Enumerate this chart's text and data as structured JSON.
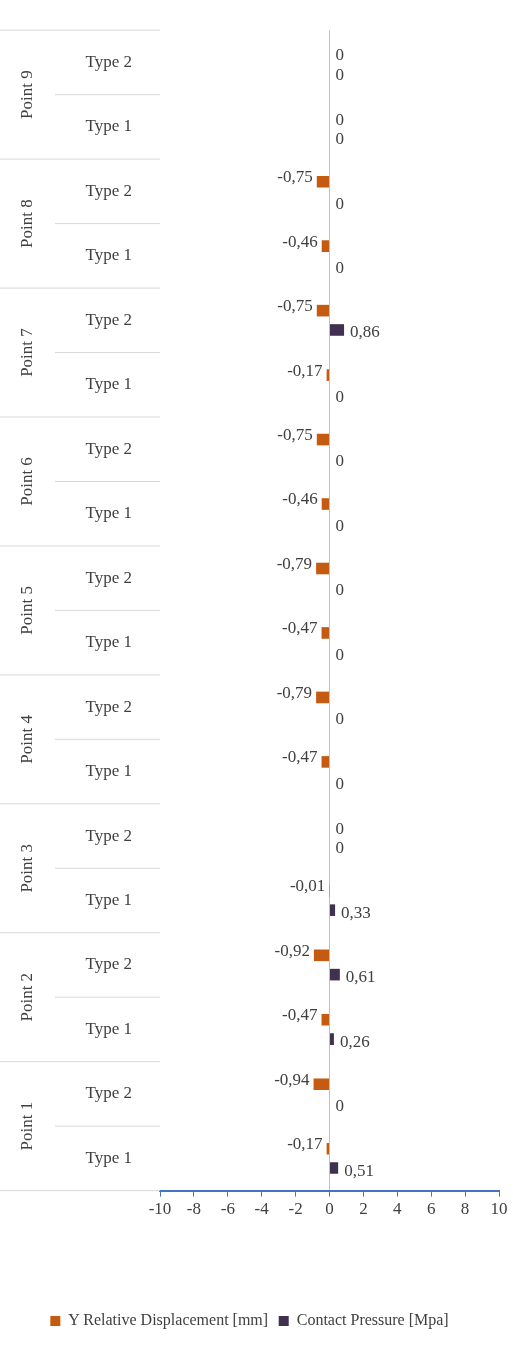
{
  "chart_data": {
    "type": "bar",
    "orientation": "horizontal",
    "categories": [
      "Type 2",
      "Type 1",
      "Type 2",
      "Type 1",
      "Type 2",
      "Type 1",
      "Type 2",
      "Type 1",
      "Type 2",
      "Type 1",
      "Type 2",
      "Type 1",
      "Type 2",
      "Type 1",
      "Type 2",
      "Type 1",
      "Type 2",
      "Type 1"
    ],
    "annotations": [
      "Point 9",
      "Point 8",
      "Point 7",
      "Point 6",
      "Point 5",
      "Point 4",
      "Point 3",
      "Point 2",
      "Point 1"
    ],
    "series": [
      {
        "name": "Y Relative Displacement [mm]",
        "color": "#c55a11",
        "values": [
          0,
          0,
          -0.75,
          -0.46,
          -0.75,
          -0.17,
          -0.75,
          -0.46,
          -0.79,
          -0.47,
          -0.79,
          -0.47,
          0,
          -0.01,
          -0.92,
          -0.47,
          -0.94,
          -0.17
        ],
        "value_labels": [
          "0",
          "0",
          "-0,75",
          "-0,46",
          "-0,75",
          "-0,17",
          "-0,75",
          "-0,46",
          "-0,79",
          "-0,47",
          "-0,79",
          "-0,47",
          "0",
          "-0,01",
          "-0,92",
          "-0,47",
          "-0,94",
          "-0,17"
        ]
      },
      {
        "name": "Contact Pressure [Mpa]",
        "color": "#403151",
        "values": [
          0,
          0,
          0,
          0,
          0.86,
          0,
          0,
          0,
          0,
          0,
          0,
          0,
          0,
          0.33,
          0.61,
          0.26,
          0,
          0.51
        ],
        "value_labels": [
          "0",
          "0",
          "0",
          "0",
          "0,86",
          "0",
          "0",
          "0",
          "0",
          "0",
          "0",
          "0",
          "0",
          "0,33",
          "0,61",
          "0,26",
          "0",
          "0,51"
        ]
      }
    ],
    "xlim": [
      -10,
      10
    ],
    "xticks": [
      -10,
      -8,
      -6,
      -4,
      -2,
      0,
      2,
      4,
      6,
      8,
      10
    ],
    "legend": "bottom"
  }
}
